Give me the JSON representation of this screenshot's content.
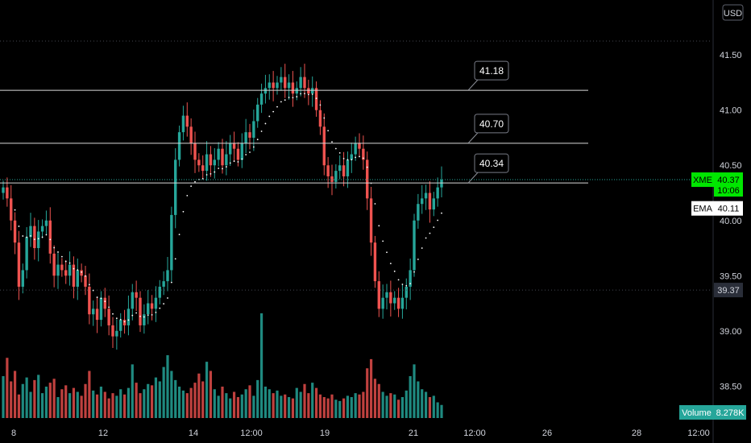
{
  "currency": "USD",
  "colors": {
    "up": "#26a69a",
    "down": "#ef5350",
    "up_vol": "#1f8a80",
    "down_vol": "#c0413f",
    "grid": "#1c1f26",
    "hline": "#d9d9d9",
    "ema": "#ffffff",
    "badge_symbol": "#00e600",
    "badge_volume": "#26a69a"
  },
  "chart_data": {
    "type": "candlestick",
    "symbol": "XME",
    "y_ticks": [
      "41.50",
      "41.00",
      "40.50",
      "40.00",
      "39.50",
      "39.00",
      "38.50"
    ],
    "x_ticks": [
      "8",
      "12",
      "14",
      "12:00",
      "19",
      "21",
      "12:00",
      "26",
      "28",
      "12:00"
    ],
    "ylim": [
      38.4,
      41.56
    ],
    "grid": false,
    "horizontal_lines": [
      {
        "value": 41.18,
        "label": "41.18"
      },
      {
        "value": 40.7,
        "label": "40.70"
      },
      {
        "value": 40.34,
        "label": "40.34"
      }
    ],
    "last_price": {
      "label": "XME",
      "value": "40.37",
      "timer": "10:06"
    },
    "ema": {
      "label": "EMA",
      "value": "40.11"
    },
    "price_marker": "39.37",
    "volume": {
      "label": "Volume",
      "value": "8.278K"
    },
    "closes": [
      40.3,
      40.2,
      40.0,
      39.8,
      39.4,
      39.55,
      39.85,
      39.95,
      39.75,
      39.9,
      39.95,
      40.0,
      39.7,
      39.5,
      39.6,
      39.55,
      39.5,
      39.6,
      39.4,
      39.55,
      39.5,
      39.4,
      39.15,
      39.2,
      39.1,
      39.3,
      39.2,
      39.05,
      38.95,
      39.0,
      39.1,
      39.05,
      39.2,
      39.35,
      39.3,
      39.05,
      39.15,
      39.25,
      39.2,
      39.3,
      39.4,
      39.45,
      39.55,
      40.05,
      40.55,
      40.8,
      40.95,
      40.85,
      40.7,
      40.55,
      40.5,
      40.45,
      40.6,
      40.5,
      40.55,
      40.65,
      40.5,
      40.6,
      40.7,
      40.65,
      40.55,
      40.7,
      40.8,
      40.75,
      40.9,
      41.05,
      41.15,
      41.2,
      41.25,
      41.2,
      41.25,
      41.3,
      41.2,
      41.25,
      41.15,
      41.2,
      41.3,
      41.2,
      41.15,
      41.2,
      41.0,
      40.85,
      40.5,
      40.4,
      40.35,
      40.45,
      40.5,
      40.4,
      40.55,
      40.6,
      40.7,
      40.65,
      40.55,
      40.2,
      39.8,
      39.45,
      39.2,
      39.3,
      39.35,
      39.25,
      39.3,
      39.2,
      39.3,
      39.4,
      39.55,
      40.0,
      40.15,
      40.2,
      40.25,
      40.1,
      40.2,
      40.3,
      40.37
    ],
    "volumes": [
      3.2,
      4.6,
      2.8,
      3.6,
      1.8,
      2.6,
      3.1,
      2.0,
      2.9,
      3.3,
      1.9,
      2.4,
      2.7,
      3.0,
      1.6,
      2.2,
      2.5,
      1.9,
      2.3,
      2.0,
      1.7,
      2.6,
      3.6,
      2.1,
      1.8,
      2.4,
      2.0,
      1.5,
      1.9,
      1.7,
      2.2,
      1.8,
      2.3,
      4.1,
      2.7,
      1.9,
      2.2,
      2.6,
      2.5,
      3.1,
      2.8,
      3.9,
      4.8,
      3.6,
      2.9,
      2.4,
      2.1,
      1.9,
      2.3,
      2.7,
      3.4,
      2.8,
      4.3,
      3.6,
      2.2,
      1.7,
      2.4,
      1.9,
      1.5,
      2.0,
      1.6,
      1.8,
      2.2,
      2.5,
      1.7,
      2.9,
      8.0,
      2.4,
      2.2,
      1.9,
      2.1,
      1.7,
      1.8,
      1.6,
      1.5,
      2.3,
      2.0,
      2.6,
      1.9,
      2.7,
      2.3,
      1.8,
      1.6,
      1.5,
      1.8,
      1.4,
      1.3,
      1.5,
      1.7,
      1.6,
      1.9,
      1.8,
      2.0,
      3.8,
      4.5,
      3.0,
      2.6,
      2.0,
      1.7,
      1.9,
      1.8,
      1.4,
      1.6,
      2.1,
      3.2,
      4.1,
      2.8,
      2.2,
      2.0,
      1.6,
      1.7,
      1.2,
      1.0
    ]
  }
}
